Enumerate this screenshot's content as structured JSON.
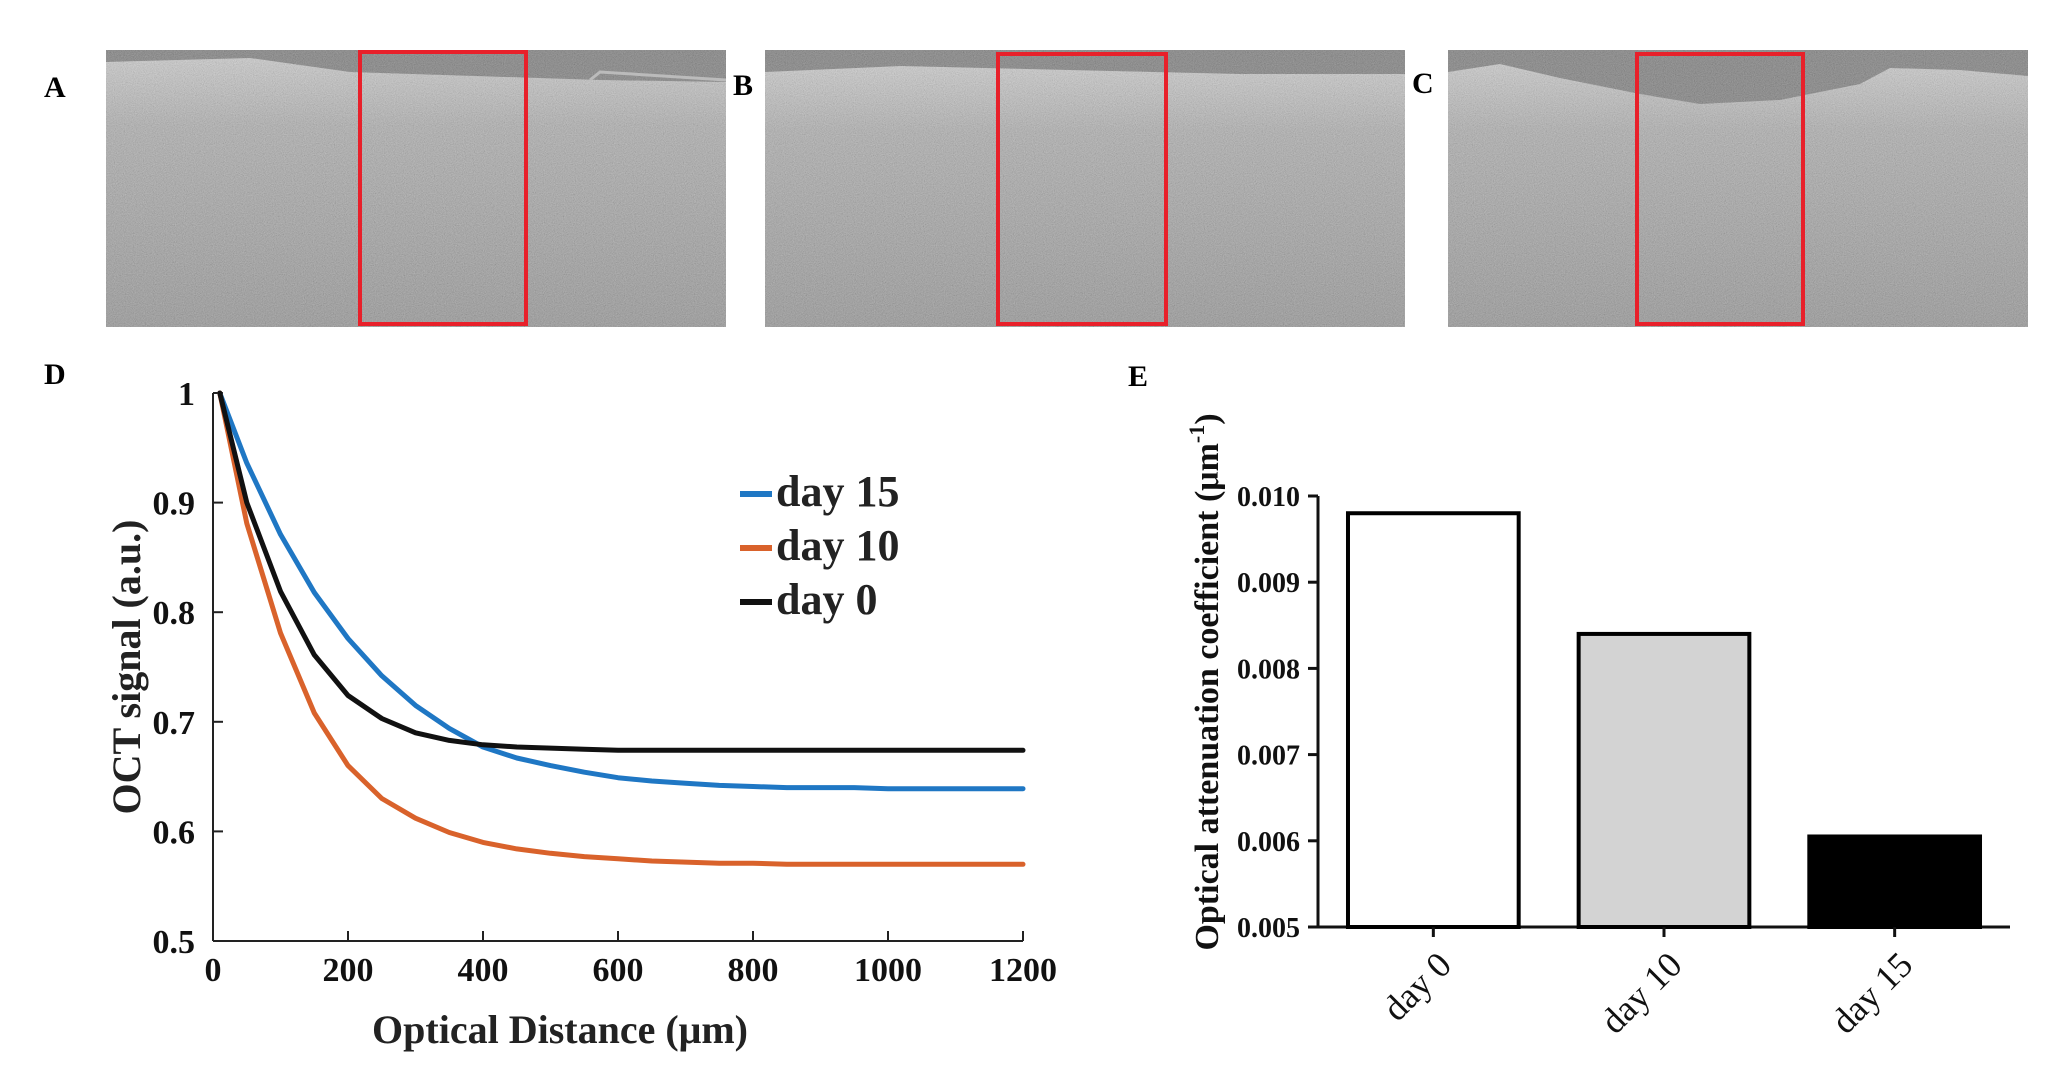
{
  "panel_labels": {
    "a": "A",
    "b": "B",
    "c": "C",
    "d": "D",
    "e": "E"
  },
  "images": [
    {
      "name": "oct-image-a",
      "surface": "flat-with-dip"
    },
    {
      "name": "oct-image-b",
      "surface": "flat-with-dip"
    },
    {
      "name": "oct-image-c",
      "surface": "deep-dip"
    }
  ],
  "colors": {
    "day15": "#1f77c4",
    "day10": "#d9622b",
    "day0": "#111111",
    "roi": "#e8202a",
    "bar_day0": "#ffffff",
    "bar_day10": "#d3d3d3",
    "bar_day15": "#000000"
  },
  "chart_data": [
    {
      "type": "line",
      "panel": "D",
      "title": "",
      "xlabel": "Optical Distance (μm)",
      "ylabel": "OCT signal (a.u.)",
      "xlim": [
        0,
        1200
      ],
      "ylim": [
        0.5,
        1
      ],
      "xticks": [
        "0",
        "200",
        "400",
        "600",
        "800",
        "1000",
        "1200"
      ],
      "yticks": [
        "0.5",
        "0.6",
        "0.7",
        "0.8",
        "0.9",
        "1"
      ],
      "grid": false,
      "legend_position": "top-right",
      "x": [
        10,
        50,
        100,
        150,
        200,
        250,
        300,
        350,
        400,
        450,
        500,
        550,
        600,
        650,
        700,
        750,
        800,
        850,
        900,
        950,
        1000,
        1050,
        1100,
        1150,
        1200
      ],
      "series": [
        {
          "name": "day 15",
          "color_key": "day15",
          "values": [
            1.0,
            0.936,
            0.871,
            0.818,
            0.776,
            0.742,
            0.715,
            0.694,
            0.677,
            0.667,
            0.66,
            0.654,
            0.649,
            0.646,
            0.644,
            0.642,
            0.641,
            0.64,
            0.64,
            0.64,
            0.639,
            0.639,
            0.639,
            0.639,
            0.639
          ]
        },
        {
          "name": "day 10",
          "color_key": "day10",
          "values": [
            1.0,
            0.881,
            0.781,
            0.708,
            0.66,
            0.63,
            0.612,
            0.599,
            0.59,
            0.584,
            0.58,
            0.577,
            0.575,
            0.573,
            0.572,
            0.571,
            0.571,
            0.57,
            0.57,
            0.57,
            0.57,
            0.57,
            0.57,
            0.57,
            0.57
          ]
        },
        {
          "name": "day 0",
          "color_key": "day0",
          "values": [
            1.0,
            0.9,
            0.819,
            0.761,
            0.724,
            0.703,
            0.69,
            0.683,
            0.679,
            0.677,
            0.676,
            0.675,
            0.674,
            0.674,
            0.674,
            0.674,
            0.674,
            0.674,
            0.674,
            0.674,
            0.674,
            0.674,
            0.674,
            0.674,
            0.674
          ]
        }
      ]
    },
    {
      "type": "bar",
      "panel": "E",
      "title": "",
      "xlabel": "",
      "ylabel_main": "Optical attenuation coefficient (μm",
      "ylabel_sup": "-1",
      "ylabel_end": ")",
      "categories": [
        "day 0",
        "day 10",
        "day 15"
      ],
      "values": [
        0.0098,
        0.0084,
        0.00605
      ],
      "fill_keys": [
        "bar_day0",
        "bar_day10",
        "bar_day15"
      ],
      "ylim": [
        0.005,
        0.01
      ],
      "yticks": [
        "0.005",
        "0.006",
        "0.007",
        "0.008",
        "0.009",
        "0.010"
      ],
      "grid": false
    }
  ]
}
